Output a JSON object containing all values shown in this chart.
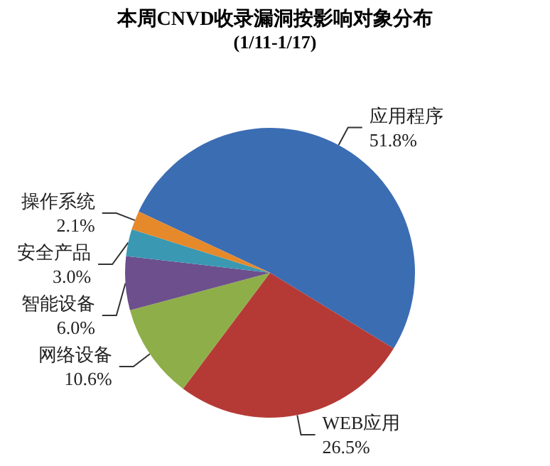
{
  "chart_data": {
    "type": "pie",
    "title": "本周CNVD收录漏洞按影响对象分布",
    "subtitle": "(1/11-1/17)",
    "categories": [
      "应用程序",
      "WEB应用",
      "网络设备",
      "智能设备",
      "安全产品",
      "操作系统"
    ],
    "values": [
      51.8,
      26.5,
      10.6,
      6.0,
      3.0,
      2.1
    ],
    "value_labels": [
      "51.8%",
      "26.5%",
      "10.6%",
      "6.0%",
      "3.0%",
      "2.1%"
    ],
    "colors": [
      "#3b6db3",
      "#b53a36",
      "#8eae49",
      "#6c4f8c",
      "#3a98b3",
      "#e5892b"
    ],
    "legend": false
  }
}
